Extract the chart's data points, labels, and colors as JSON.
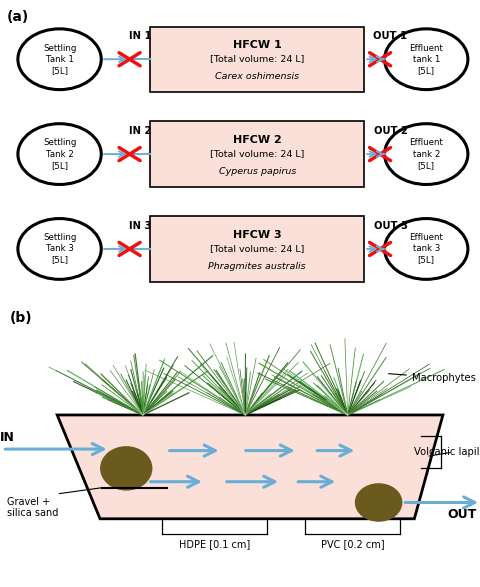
{
  "fig_width": 4.81,
  "fig_height": 5.87,
  "dpi": 100,
  "panel_a_label": "(a)",
  "panel_b_label": "(b)",
  "settling_tanks": [
    "Settling\nTank 1\n[5L]",
    "Settling\nTank 2\n[5L]",
    "Settling\nTank 3\n[5L]"
  ],
  "effluent_tanks": [
    "Effluent\ntank 1\n[5L]",
    "Effluent\ntank 2\n[5L]",
    "Effluent\ntank 3\n[5L]"
  ],
  "hfcw_titles": [
    "HFCW 1",
    "HFCW 2",
    "HFCW 3"
  ],
  "hfcw_vol": "[Total volume: 24 L]",
  "hfcw_species": [
    "Carex oshimensis",
    "Cyperus papirus",
    "Phragmites australis"
  ],
  "in_labels": [
    "IN 1",
    "IN 2",
    "IN 3"
  ],
  "out_labels": [
    "OUT 1",
    "OUT 2",
    "OUT 3"
  ],
  "box_color": "#fae0d8",
  "arrow_color": "#6aaed6",
  "cross_color": "#ee1111",
  "bg_color": "#ffffff",
  "wetland_fill": "#fae0d8",
  "gravel_color": "#6b5a1e",
  "plant_colors": [
    "#1a4d10",
    "#2d6a1f",
    "#3a8a28",
    "#4caf50",
    "#226614",
    "#3d7a22"
  ]
}
